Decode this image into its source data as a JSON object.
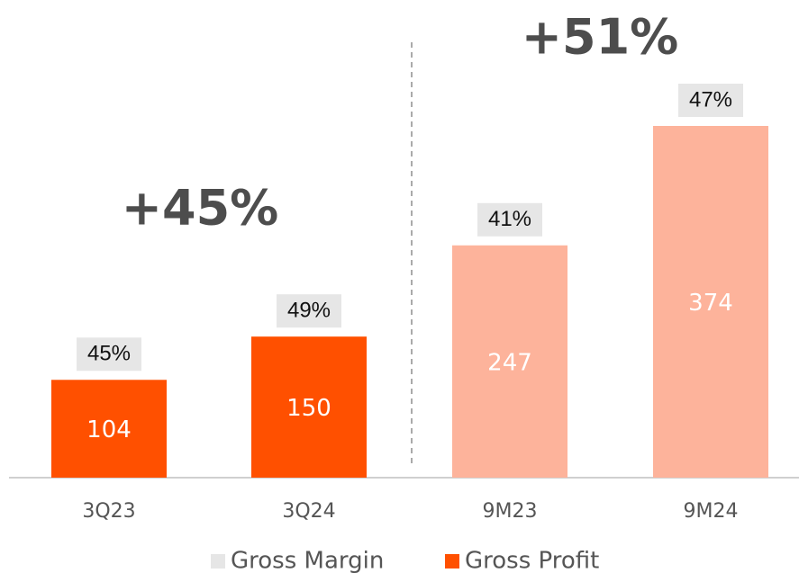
{
  "chart_data": {
    "type": "bar",
    "categories": [
      "3Q23",
      "3Q24",
      "9M23",
      "9M24"
    ],
    "series": [
      {
        "name": "Gross Profit",
        "color": "#ff5000",
        "colors": [
          "#ff5000",
          "#ff5000",
          "#fdb39b",
          "#fdb39b"
        ],
        "values": [
          104,
          150,
          247,
          374
        ]
      },
      {
        "name": "Gross Margin",
        "color": "#e6e6e6",
        "values": [
          45,
          49,
          41,
          47
        ],
        "value_labels": [
          "45%",
          "49%",
          "41%",
          "47%"
        ]
      }
    ],
    "annotations": [
      {
        "text": "+45%"
      },
      {
        "text": "+51%"
      }
    ],
    "legend": "bottom"
  }
}
